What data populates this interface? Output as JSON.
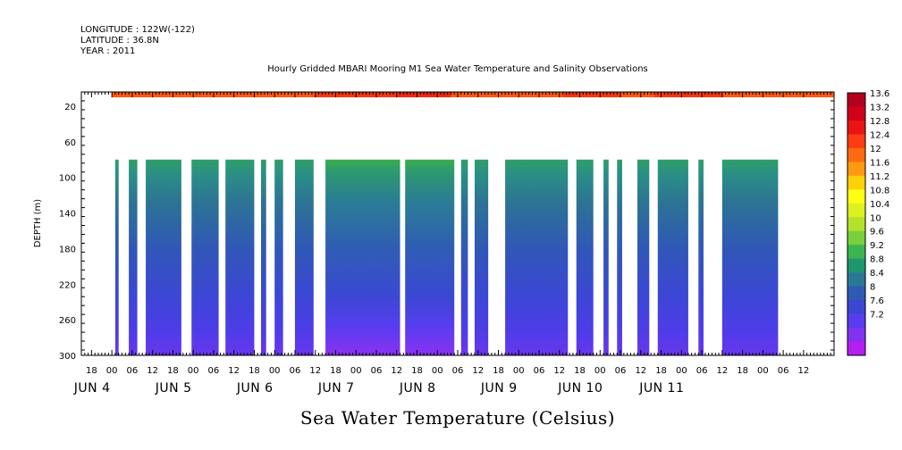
{
  "header": {
    "longitude": "LONGITUDE : 122W(-122)",
    "latitude": "LATITUDE : 36.8N",
    "year": "YEAR : 2011"
  },
  "chart_data": {
    "type": "heatmap",
    "title": "Hourly Gridded MBARI Mooring M1 Sea Water Temperature and Salinity Observations",
    "xlabel": "Sea Water Temperature (Celsius)",
    "ylabel": "DEPTH (m)",
    "xlim_hours": [
      -9,
      213
    ],
    "ylim": [
      4,
      300
    ],
    "y_inverted": true,
    "y_ticks": [
      20,
      60,
      100,
      140,
      180,
      220,
      260,
      300
    ],
    "x_hour_ticks": [
      {
        "h": -6,
        "label": "18"
      },
      {
        "h": 0,
        "label": "00"
      },
      {
        "h": 6,
        "label": "06"
      },
      {
        "h": 12,
        "label": "12"
      },
      {
        "h": 18,
        "label": "18"
      },
      {
        "h": 24,
        "label": "00"
      },
      {
        "h": 30,
        "label": "06"
      },
      {
        "h": 36,
        "label": "12"
      },
      {
        "h": 42,
        "label": "18"
      },
      {
        "h": 48,
        "label": "00"
      },
      {
        "h": 54,
        "label": "06"
      },
      {
        "h": 60,
        "label": "12"
      },
      {
        "h": 66,
        "label": "18"
      },
      {
        "h": 72,
        "label": "00"
      },
      {
        "h": 78,
        "label": "06"
      },
      {
        "h": 84,
        "label": "12"
      },
      {
        "h": 90,
        "label": "18"
      },
      {
        "h": 96,
        "label": "00"
      },
      {
        "h": 102,
        "label": "06"
      },
      {
        "h": 108,
        "label": "12"
      },
      {
        "h": 114,
        "label": "18"
      },
      {
        "h": 120,
        "label": "00"
      },
      {
        "h": 126,
        "label": "06"
      },
      {
        "h": 132,
        "label": "12"
      },
      {
        "h": 138,
        "label": "18"
      },
      {
        "h": 144,
        "label": "00"
      },
      {
        "h": 150,
        "label": "06"
      },
      {
        "h": 156,
        "label": "12"
      },
      {
        "h": 162,
        "label": "18"
      },
      {
        "h": 168,
        "label": "00"
      },
      {
        "h": 174,
        "label": "06"
      },
      {
        "h": 180,
        "label": "12"
      },
      {
        "h": 186,
        "label": "18"
      },
      {
        "h": 192,
        "label": "00"
      },
      {
        "h": 198,
        "label": "06"
      },
      {
        "h": 204,
        "label": "12"
      }
    ],
    "day_labels": [
      {
        "h": 0,
        "label": "JUN  4"
      },
      {
        "h": 24,
        "label": "JUN  5"
      },
      {
        "h": 48,
        "label": "JUN  6"
      },
      {
        "h": 72,
        "label": "JUN  7"
      },
      {
        "h": 96,
        "label": "JUN  8"
      },
      {
        "h": 120,
        "label": "JUN  9"
      },
      {
        "h": 144,
        "label": "JUN 10"
      },
      {
        "h": 168,
        "label": "JUN 11"
      }
    ],
    "surface_layer": {
      "depth_range": [
        4,
        10
      ],
      "temperature": 12.3,
      "hour_range": [
        0,
        213
      ]
    },
    "data_intervals_hours": [
      [
        1,
        2
      ],
      [
        5,
        7.5
      ],
      [
        10,
        20.5
      ],
      [
        23.5,
        31.5
      ],
      [
        33.5,
        42
      ],
      [
        44,
        45.5
      ],
      [
        48,
        50.5
      ],
      [
        54,
        59.5
      ],
      [
        63,
        85
      ],
      [
        86.5,
        101
      ],
      [
        103,
        105
      ],
      [
        107,
        111
      ],
      [
        116,
        134.5
      ],
      [
        137,
        142
      ],
      [
        145,
        146.5
      ],
      [
        149,
        150.5
      ],
      [
        155,
        158.5
      ],
      [
        161,
        170
      ],
      [
        173,
        174.5
      ],
      [
        180,
        196.5
      ]
    ],
    "subsurface_depth_range": [
      80,
      300
    ],
    "color_scale": {
      "labels": [
        "13.6",
        "13.2",
        "12.8",
        "12.4",
        "12",
        "11.6",
        "11.2",
        "10.8",
        "10.4",
        "10",
        "9.6",
        "9.2",
        "8.8",
        "8.4",
        "8",
        "7.6",
        "7.2"
      ],
      "colors": [
        "#b3001f",
        "#d00018",
        "#ea1414",
        "#ff3c14",
        "#ff6a10",
        "#ff9a10",
        "#ffd00a",
        "#ffff14",
        "#ddf020",
        "#b4e22c",
        "#78d03c",
        "#3cb450",
        "#1e966e",
        "#2a7896",
        "#2f5ab4",
        "#3c46d2",
        "#5a3cf0",
        "#8232f0",
        "#b41ef0"
      ]
    }
  }
}
